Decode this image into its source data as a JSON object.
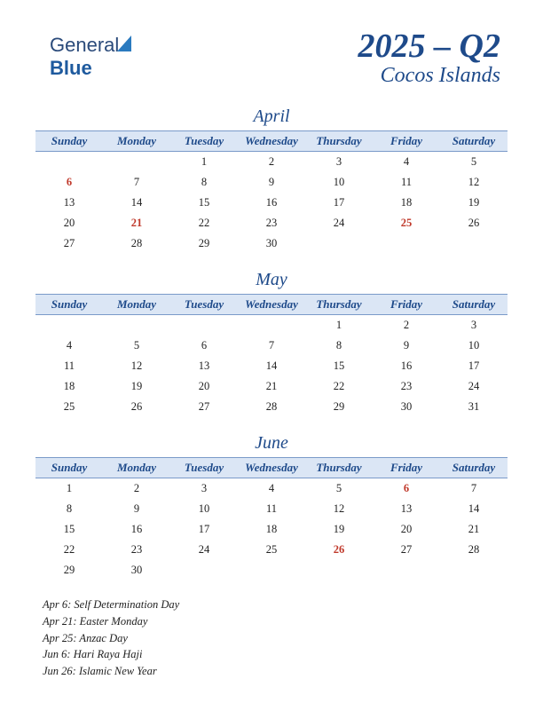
{
  "logo": {
    "part1": "General",
    "part2": "Blue"
  },
  "header": {
    "quarter": "2025 – Q2",
    "region": "Cocos Islands"
  },
  "weekdays": [
    "Sunday",
    "Monday",
    "Tuesday",
    "Wednesday",
    "Thursday",
    "Friday",
    "Saturday"
  ],
  "months": [
    {
      "name": "April",
      "weeks": [
        [
          "",
          "",
          "1",
          "2",
          "3",
          "4",
          "5"
        ],
        [
          "6",
          "7",
          "8",
          "9",
          "10",
          "11",
          "12"
        ],
        [
          "13",
          "14",
          "15",
          "16",
          "17",
          "18",
          "19"
        ],
        [
          "20",
          "21",
          "22",
          "23",
          "24",
          "25",
          "26"
        ],
        [
          "27",
          "28",
          "29",
          "30",
          "",
          "",
          ""
        ]
      ],
      "holidays": [
        "6",
        "21",
        "25"
      ]
    },
    {
      "name": "May",
      "weeks": [
        [
          "",
          "",
          "",
          "",
          "1",
          "2",
          "3"
        ],
        [
          "4",
          "5",
          "6",
          "7",
          "8",
          "9",
          "10"
        ],
        [
          "11",
          "12",
          "13",
          "14",
          "15",
          "16",
          "17"
        ],
        [
          "18",
          "19",
          "20",
          "21",
          "22",
          "23",
          "24"
        ],
        [
          "25",
          "26",
          "27",
          "28",
          "29",
          "30",
          "31"
        ]
      ],
      "holidays": []
    },
    {
      "name": "June",
      "weeks": [
        [
          "1",
          "2",
          "3",
          "4",
          "5",
          "6",
          "7"
        ],
        [
          "8",
          "9",
          "10",
          "11",
          "12",
          "13",
          "14"
        ],
        [
          "15",
          "16",
          "17",
          "18",
          "19",
          "20",
          "21"
        ],
        [
          "22",
          "23",
          "24",
          "25",
          "26",
          "27",
          "28"
        ],
        [
          "29",
          "30",
          "",
          "",
          "",
          "",
          ""
        ]
      ],
      "holidays": [
        "6",
        "26"
      ]
    }
  ],
  "holiday_list": [
    "Apr 6: Self Determination Day",
    "Apr 21: Easter Monday",
    "Apr 25: Anzac Day",
    "Jun 6: Hari Raya Haji",
    "Jun 26: Islamic New Year"
  ],
  "colors": {
    "header_bg": "#dbe6f5",
    "header_border": "#7a9ac9",
    "text_blue": "#1e4a8a",
    "holiday_red": "#c0392b"
  }
}
